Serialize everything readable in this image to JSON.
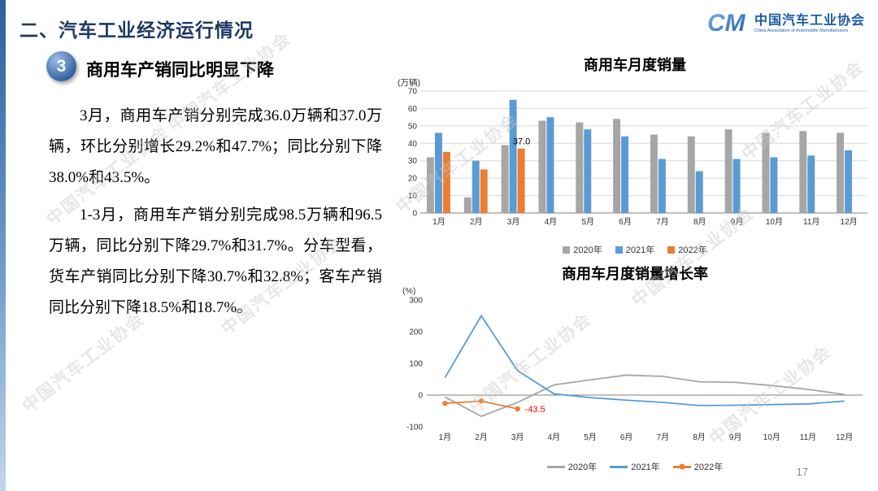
{
  "slide": {
    "title": "二、汽车工业经济运行情况",
    "section_number": "3",
    "section_heading": "商用车产销同比明显下降",
    "paragraph1": "3月，商用车产销分别完成36.0万辆和37.0万辆，环比分别增长29.2%和47.7%；同比分别下降38.0%和43.5%。",
    "paragraph2": "1-3月，商用车产销分别完成98.5万辆和96.5万辆，同比分别下降29.7%和31.7%。分车型看，货车产销同比分别下降30.7%和32.8%；客车产销同比分别下降18.5%和18.7%。",
    "page_number": "17",
    "watermark": "中国汽车工业协会"
  },
  "logo": {
    "monogram": "CM",
    "org_name_cn": "中国汽车工业协会",
    "org_name_en": "China Association of Automobile Manufacturers"
  },
  "colors": {
    "series_2020": "#A6A6A6",
    "series_2021": "#5B9BD5",
    "series_2022": "#ED7D31",
    "title_navy": "#1F3864",
    "annotation_red": "#FF0000"
  },
  "chart_data": [
    {
      "type": "bar",
      "title": "商用车月度销量",
      "y_unit_label": "(万辆)",
      "categories": [
        "1月",
        "2月",
        "3月",
        "4月",
        "5月",
        "6月",
        "7月",
        "8月",
        "9月",
        "10月",
        "11月",
        "12月"
      ],
      "series": [
        {
          "name": "2020年",
          "color": "#A6A6A6",
          "values": [
            32,
            9,
            39,
            53,
            52,
            54,
            45,
            44,
            48,
            46,
            47,
            46
          ]
        },
        {
          "name": "2021年",
          "color": "#5B9BD5",
          "values": [
            46,
            30,
            65,
            55,
            48,
            44,
            31,
            24,
            31,
            32,
            33,
            36
          ]
        },
        {
          "name": "2022年",
          "color": "#ED7D31",
          "values": [
            35,
            25,
            37,
            null,
            null,
            null,
            null,
            null,
            null,
            null,
            null,
            null
          ]
        }
      ],
      "ylim": [
        0,
        70
      ],
      "ytick_step": 10,
      "grid": true,
      "legend_position": "bottom",
      "annotation": {
        "text": "37.0",
        "series": "2022年",
        "category_index": 2,
        "color": "#000000"
      }
    },
    {
      "type": "line",
      "title": "商用车月度销量增长率",
      "y_unit_label": "(%)",
      "categories": [
        "1月",
        "2月",
        "3月",
        "4月",
        "5月",
        "6月",
        "7月",
        "8月",
        "9月",
        "10月",
        "11月",
        "12月"
      ],
      "series": [
        {
          "name": "2020年",
          "color": "#A6A6A6",
          "marker": false,
          "values": [
            -6,
            -67,
            -23,
            32,
            48,
            63,
            59,
            42,
            40,
            30,
            18,
            2
          ]
        },
        {
          "name": "2021年",
          "color": "#5B9BD5",
          "marker": false,
          "values": [
            55,
            250,
            77,
            4,
            -8,
            -16,
            -23,
            -33,
            -32,
            -30,
            -28,
            -19
          ]
        },
        {
          "name": "2022年",
          "color": "#ED7D31",
          "marker": true,
          "values": [
            -26,
            -19,
            -43.5,
            null,
            null,
            null,
            null,
            null,
            null,
            null,
            null,
            null
          ]
        }
      ],
      "ylim": [
        -100,
        300
      ],
      "ytick_step": 100,
      "grid": false,
      "legend_position": "bottom",
      "annotation": {
        "text": "-43.5",
        "series": "2022年",
        "category_index": 2,
        "color": "#FF0000"
      }
    }
  ]
}
